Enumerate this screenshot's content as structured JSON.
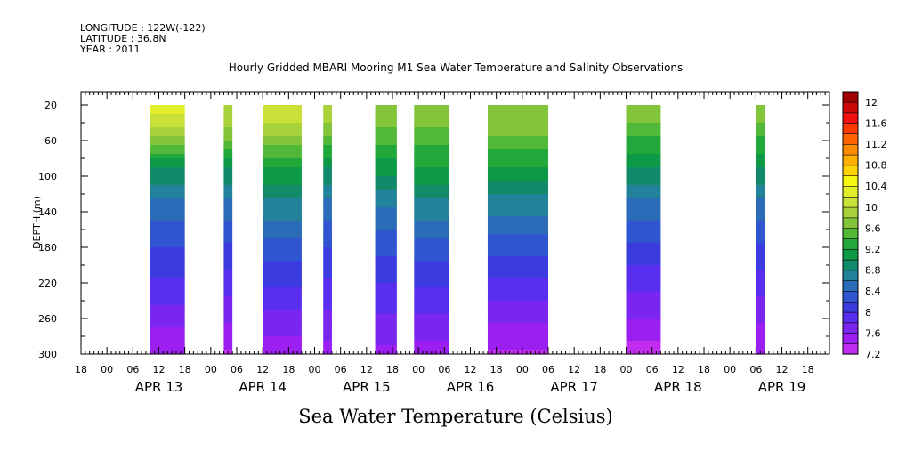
{
  "meta": {
    "longitude": "LONGITUDE : 122W(-122)",
    "latitude": "LATITUDE : 36.8N",
    "year": "YEAR : 2011"
  },
  "chart_data": {
    "type": "heatmap",
    "title": "Hourly Gridded MBARI Mooring M1 Sea Water Temperature and Salinity Observations",
    "variable_title": "Sea Water Temperature (Celsius)",
    "ylabel": "DEPTH (m)",
    "xlabel": "",
    "x_start": "APR 12 18:00",
    "x_end": "APR 19 23:00",
    "y_range": [
      20,
      300
    ],
    "y_axis_top": 5,
    "y_axis_bottom": 300,
    "y_ticks": [
      20,
      60,
      100,
      140,
      180,
      220,
      260,
      300
    ],
    "x_hour_labels": [
      "00",
      "06",
      "12",
      "18"
    ],
    "x_day_labels": [
      "APR 13",
      "APR 14",
      "APR 15",
      "APR 16",
      "APR 17",
      "APR 18",
      "APR 19"
    ],
    "colorbar": {
      "levels": [
        7.2,
        7.4,
        7.6,
        7.8,
        8,
        8.2,
        8.4,
        8.6,
        8.8,
        9,
        9.2,
        9.4,
        9.6,
        9.8,
        10,
        10.2,
        10.4,
        10.6,
        10.8,
        11,
        11.2,
        11.4,
        11.6,
        11.8,
        12,
        12.2
      ],
      "tick_labels": [
        "7.2",
        "7.6",
        "8",
        "8.4",
        "8.8",
        "9.2",
        "9.6",
        "10",
        "10.4",
        "10.8",
        "11.2",
        "11.6",
        "12"
      ],
      "colors": [
        "#c22bf0",
        "#9a1ff0",
        "#7a26f0",
        "#5a2ef0",
        "#3a3ce0",
        "#2f55d0",
        "#2a6cb8",
        "#22829a",
        "#128a6a",
        "#0c9a46",
        "#22a83a",
        "#52b838",
        "#82c43a",
        "#a8d23a",
        "#c8e038",
        "#e2ee2a",
        "#f6f610",
        "#ffd400",
        "#ffb000",
        "#ff8c00",
        "#ff6400",
        "#ff3a00",
        "#f01010",
        "#cc0808",
        "#a00000"
      ]
    },
    "observation_windows": [
      {
        "start": "APR 13 10:00",
        "end": "APR 13 18:00",
        "values": [
          10.4,
          9.8,
          9.0,
          8.6,
          8.3,
          8.1,
          7.9,
          7.65,
          7.4
        ]
      },
      {
        "start": "APR 14 03:00",
        "end": "APR 14 05:00",
        "values": [
          10.0,
          9.7,
          9.0,
          8.6,
          8.3,
          8.05,
          7.85,
          7.6,
          7.35
        ]
      },
      {
        "start": "APR 14 12:00",
        "end": "APR 14 21:00",
        "values": [
          10.2,
          9.8,
          9.2,
          8.8,
          8.5,
          8.2,
          7.95,
          7.7,
          7.45
        ]
      },
      {
        "start": "APR 15 02:00",
        "end": "APR 15 04:00",
        "values": [
          10.0,
          9.6,
          9.0,
          8.6,
          8.3,
          8.1,
          7.9,
          7.7,
          7.5
        ]
      },
      {
        "start": "APR 15 14:00",
        "end": "APR 15 19:00",
        "values": [
          9.8,
          9.5,
          9.1,
          8.7,
          8.4,
          8.15,
          7.95,
          7.75,
          7.55
        ]
      },
      {
        "start": "APR 15 23:00",
        "end": "APR 16 07:00",
        "values": [
          9.8,
          9.5,
          9.2,
          8.8,
          8.5,
          8.2,
          7.95,
          7.75,
          7.5
        ]
      },
      {
        "start": "APR 16 16:00",
        "end": "APR 17 06:00",
        "values": [
          9.8,
          9.6,
          9.2,
          8.75,
          8.45,
          8.15,
          7.9,
          7.6,
          7.35
        ]
      },
      {
        "start": "APR 18 00:00",
        "end": "APR 18 08:00",
        "values": [
          9.8,
          9.4,
          9.0,
          8.6,
          8.3,
          8.05,
          7.8,
          7.55,
          7.3
        ]
      },
      {
        "start": "APR 19 06:00",
        "end": "APR 19 08:00",
        "values": [
          9.8,
          9.4,
          9.0,
          8.6,
          8.3,
          8.05,
          7.85,
          7.6,
          7.4
        ]
      }
    ],
    "profile_depths": [
      20,
      55,
      90,
      125,
      160,
      195,
      230,
      265,
      300
    ]
  }
}
